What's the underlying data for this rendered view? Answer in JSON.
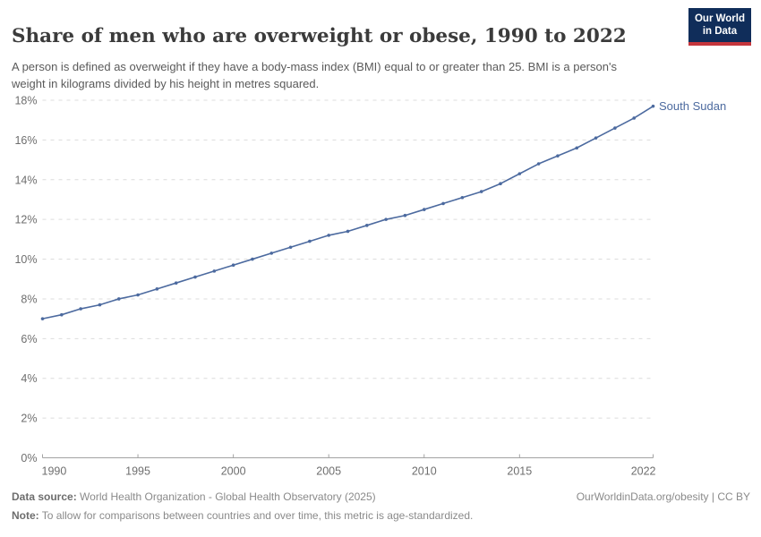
{
  "header": {
    "title": "Share of men who are overweight or obese, 1990 to 2022",
    "subtitle": "A person is defined as overweight if they have a body-mass index (BMI) equal to or greater than 25. BMI is a person's weight in kilograms divided by his height in metres squared."
  },
  "logo": {
    "line1": "Our World",
    "line2": "in Data",
    "bg_color": "#102D5A",
    "bar_color": "#C5363C"
  },
  "chart_data": {
    "type": "line",
    "title": "Share of men who are overweight or obese, 1990 to 2022",
    "x": [
      1990,
      1991,
      1992,
      1993,
      1994,
      1995,
      1996,
      1997,
      1998,
      1999,
      2000,
      2001,
      2002,
      2003,
      2004,
      2005,
      2006,
      2007,
      2008,
      2009,
      2010,
      2011,
      2012,
      2013,
      2014,
      2015,
      2016,
      2017,
      2018,
      2019,
      2020,
      2021,
      2022
    ],
    "series": [
      {
        "name": "South Sudan",
        "color": "#4C6A9F",
        "values": [
          7.0,
          7.2,
          7.5,
          7.7,
          8.0,
          8.2,
          8.5,
          8.8,
          9.1,
          9.4,
          9.7,
          10.0,
          10.3,
          10.6,
          10.9,
          11.2,
          11.4,
          11.7,
          12.0,
          12.2,
          12.5,
          12.8,
          13.1,
          13.4,
          13.8,
          14.3,
          14.8,
          15.2,
          15.6,
          16.1,
          16.6,
          17.1,
          17.7
        ]
      }
    ],
    "xlabel": "",
    "ylabel": "",
    "ylim": [
      0,
      18
    ],
    "xlim": [
      1990,
      2022
    ],
    "y_ticks": [
      0,
      2,
      4,
      6,
      8,
      10,
      12,
      14,
      16,
      18
    ],
    "y_tick_suffix": "%",
    "x_ticks": [
      1990,
      1995,
      2000,
      2005,
      2010,
      2015,
      2022
    ],
    "grid": "horizontal-dashed",
    "legend": "end-of-line-label",
    "grid_color": "#dcdcdc",
    "axis_color": "#a3a3a3",
    "tick_label_color": "#6e6e6e"
  },
  "footer": {
    "source_label": "Data source:",
    "source_text": " World Health Organization - Global Health Observatory (2025)",
    "rights": "OurWorldinData.org/obesity | CC BY",
    "note_label": "Note:",
    "note_text": " To allow for comparisons between countries and over time, this metric is age-standardized."
  }
}
